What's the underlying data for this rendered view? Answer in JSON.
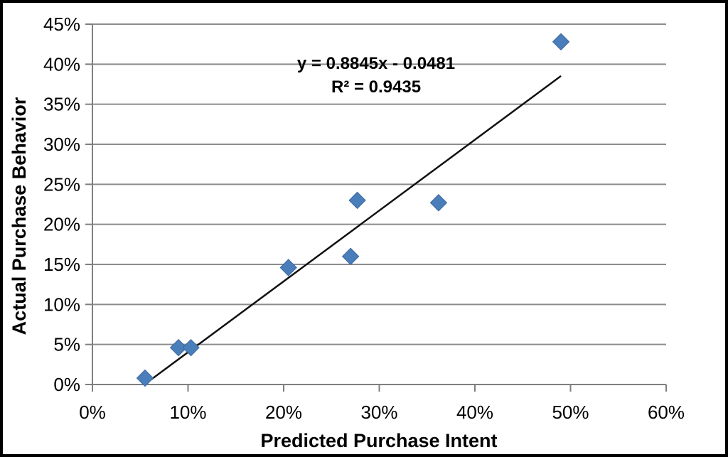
{
  "figure": {
    "background": "#ffffff",
    "border_color": "#000000"
  },
  "chart_data": {
    "type": "scatter",
    "title": "",
    "xlabel": "Predicted Purchase Intent",
    "ylabel": "Actual Purchase Behavior",
    "xlim": [
      0,
      60
    ],
    "ylim": [
      0,
      45
    ],
    "x_tick_step": 10,
    "y_tick_step": 5,
    "x_tick_labels": [
      "0%",
      "10%",
      "20%",
      "30%",
      "40%",
      "50%",
      "60%"
    ],
    "y_tick_labels": [
      "0%",
      "5%",
      "10%",
      "15%",
      "20%",
      "25%",
      "30%",
      "35%",
      "40%",
      "45%"
    ],
    "grid": "horizontal-only",
    "legend": "none",
    "points": [
      {
        "x": 5.5,
        "y": 0.8
      },
      {
        "x": 9.0,
        "y": 4.6
      },
      {
        "x": 10.3,
        "y": 4.6
      },
      {
        "x": 20.5,
        "y": 14.6
      },
      {
        "x": 27.0,
        "y": 16.0
      },
      {
        "x": 27.7,
        "y": 23.0
      },
      {
        "x": 36.2,
        "y": 22.7
      },
      {
        "x": 49.0,
        "y": 42.8
      }
    ],
    "trendline": {
      "slope": 0.8845,
      "intercept": -0.0481,
      "x_start_pct": 5.5,
      "x_end_pct": 49.0,
      "equation_label": "y = 0.8845x - 0.0481",
      "r2_label": "R² = 0.9435"
    },
    "colors": {
      "marker_fill": "#4A7EBB",
      "marker_stroke": "#3A679E",
      "trendline": "#111111",
      "gridline": "#8C8C8C",
      "axis": "#7F7F7F",
      "text": "#000000"
    }
  }
}
